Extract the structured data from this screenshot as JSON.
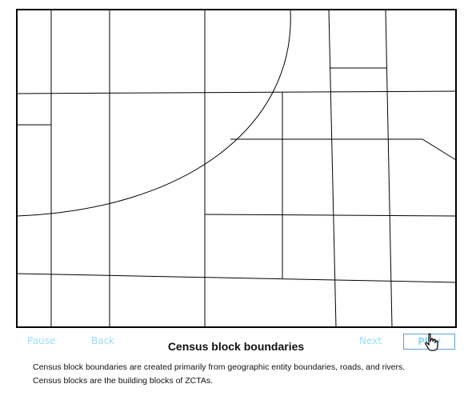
{
  "controls": {
    "pause": "Pause",
    "back": "Back",
    "next": "Next",
    "play": "Play"
  },
  "slide": {
    "title": "Census block boundaries",
    "description_line1": "Census block boundaries are created primarily from geographic entity boundaries, roads, and rivers.",
    "description_line2": "Census blocks are the building blocks of ZCTAs."
  },
  "colors": {
    "controls": "#9fdcf4",
    "play_border": "#5aa0d8",
    "map_line": "#000000"
  },
  "icons": {
    "cursor": "hand-pointer-icon"
  }
}
